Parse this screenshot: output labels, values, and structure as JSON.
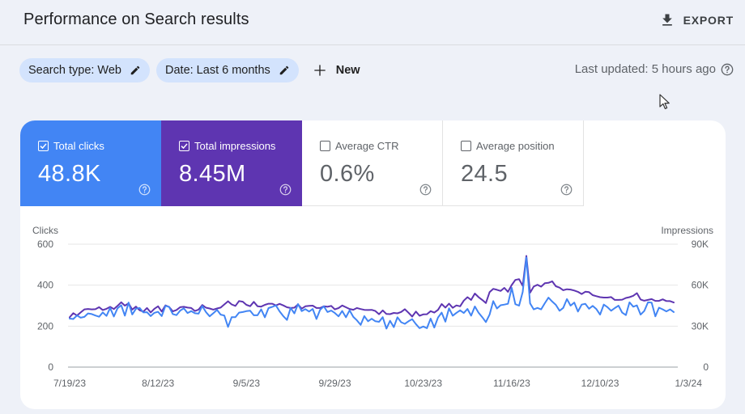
{
  "header": {
    "title": "Performance on Search results",
    "export_label": "EXPORT"
  },
  "filters": {
    "search_type": "Search type: Web",
    "date": "Date: Last 6 months",
    "new_label": "New"
  },
  "status": {
    "last_updated": "Last updated: 5 hours ago"
  },
  "metrics": [
    {
      "label": "Total clicks",
      "value": "48.8K",
      "checked": true,
      "color": "#4285f4"
    },
    {
      "label": "Total impressions",
      "value": "8.45M",
      "checked": true,
      "color": "#5e35b1"
    },
    {
      "label": "Average CTR",
      "value": "0.6%",
      "checked": false,
      "color": "#ffffff"
    },
    {
      "label": "Average position",
      "value": "24.5",
      "checked": false,
      "color": "#ffffff"
    }
  ],
  "chart_data": {
    "type": "line",
    "ylabel_left": "Clicks",
    "ylabel_right": "Impressions",
    "y_left_ticks": [
      "0",
      "200",
      "400",
      "600"
    ],
    "y_right_ticks": [
      "0",
      "30K",
      "60K",
      "90K"
    ],
    "ylim_left": [
      0,
      600
    ],
    "ylim_right": [
      0,
      90000
    ],
    "x_tick_labels": [
      "7/19/23",
      "8/12/23",
      "9/5/23",
      "9/29/23",
      "10/23/23",
      "11/16/23",
      "12/10/23",
      "1/3/24"
    ],
    "grid": true,
    "series": [
      {
        "name": "Clicks",
        "axis": "left",
        "color": "#4285f4",
        "values": [
          237,
          235,
          252,
          241,
          245,
          262,
          259,
          252,
          246,
          267,
          250,
          289,
          247,
          287,
          302,
          251,
          315,
          257,
          285,
          289,
          267,
          268,
          249,
          265,
          270,
          249,
          299,
          294,
          259,
          254,
          276,
          287,
          264,
          273,
          263,
          261,
          298,
          269,
          248,
          263,
          279,
          256,
          252,
          196,
          244,
          244,
          266,
          269,
          273,
          275,
          253,
          253,
          282,
          243,
          288,
          294,
          301,
          272,
          249,
          230,
          289,
          262,
          308,
          273,
          283,
          271,
          284,
          235,
          280,
          297,
          269,
          276,
          264,
          248,
          274,
          243,
          277,
          245,
          228,
          206,
          249,
          224,
          236,
          224,
          221,
          244,
          188,
          226,
          195,
          243,
          219,
          211,
          224,
          234,
          210,
          190,
          198,
          190,
          237,
          193,
          242,
          266,
          222,
          287,
          251,
          265,
          277,
          264,
          284,
          251,
          296,
          266,
          244,
          220,
          256,
          322,
          286,
          302,
          305,
          309,
          387,
          307,
          300,
          367,
          535,
          311,
          282,
          289,
          282,
          312,
          339,
          320,
          304,
          275,
          289,
          332,
          300,
          315,
          271,
          305,
          309,
          285,
          299,
          283,
          256,
          305,
          293,
          275,
          288,
          300,
          266,
          254,
          316,
          295,
          301,
          256,
          274,
          316,
          315,
          248,
          290,
          282,
          272,
          282,
          269
        ]
      },
      {
        "name": "Impressions",
        "axis": "right",
        "color": "#5e35b1",
        "values": [
          36500,
          39500,
          37800,
          40000,
          42300,
          42600,
          42300,
          42400,
          43900,
          41800,
          42700,
          44100,
          42500,
          44800,
          47500,
          45000,
          46700,
          42100,
          44300,
          41600,
          40600,
          43300,
          40000,
          42700,
          44500,
          40700,
          45200,
          44100,
          40800,
          41800,
          43900,
          44200,
          43600,
          43300,
          41100,
          42100,
          45500,
          43500,
          42900,
          42100,
          42900,
          43600,
          45900,
          48200,
          45900,
          44800,
          48400,
          47900,
          45600,
          44600,
          47800,
          44600,
          44300,
          45600,
          46400,
          46400,
          45200,
          46300,
          45200,
          43800,
          43300,
          43500,
          45900,
          42800,
          44500,
          44800,
          45000,
          43300,
          43300,
          44500,
          44200,
          44800,
          42300,
          43200,
          45100,
          43800,
          42600,
          42000,
          43300,
          42500,
          41900,
          41800,
          41900,
          41100,
          38700,
          41500,
          38900,
          38800,
          39700,
          39400,
          40400,
          42400,
          39800,
          37000,
          40700,
          37600,
          38600,
          38700,
          41000,
          39900,
          41900,
          46200,
          43600,
          46500,
          43400,
          45200,
          44500,
          48700,
          51200,
          49200,
          53900,
          51300,
          49200,
          46900,
          54900,
          57300,
          56600,
          55800,
          58000,
          55100,
          60100,
          63800,
          64400,
          59500,
          81400,
          54500,
          59000,
          60300,
          58900,
          61400,
          61700,
          62800,
          59200,
          58200,
          56300,
          57000,
          56800,
          56100,
          55100,
          53500,
          55200,
          54900,
          52700,
          51900,
          51200,
          50900,
          50900,
          51300,
          49200,
          49200,
          49400,
          50600,
          51200,
          52200,
          54200,
          49500,
          48600,
          49200,
          49800,
          48500,
          48500,
          49600,
          48400,
          48300,
          47300
        ]
      }
    ]
  }
}
